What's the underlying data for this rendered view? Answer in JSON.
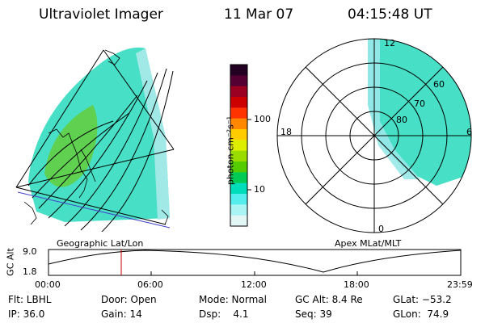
{
  "header": {
    "instrument": "Ultraviolet Imager",
    "date": "11 Mar 07",
    "time": "04:15:48 UT"
  },
  "left_map": {
    "caption": "Geographic Lat/Lon"
  },
  "right_map": {
    "caption": "Apex MLat/MLT",
    "clock_labels": {
      "top": "12",
      "left": "18",
      "right": "6",
      "bottom": "0"
    },
    "lat_labels": [
      "60",
      "70",
      "80"
    ]
  },
  "colorbar": {
    "unit": "photon cm⁻²s⁻¹",
    "ticks": [
      "100",
      "10"
    ],
    "colors": [
      "#220022",
      "#550033",
      "#990022",
      "#cc0000",
      "#ff3300",
      "#ff8800",
      "#ffcc00",
      "#ddee00",
      "#99dd00",
      "#55cc00",
      "#00cc55",
      "#00ddbb",
      "#55eeee",
      "#aaf4f4",
      "#e2f6f6"
    ]
  },
  "altitude_plot": {
    "ylabel": "GC Alt",
    "ymax_label": "9.0",
    "ymin_label": "1.8",
    "xticks": [
      "00:00",
      "06:00",
      "12:00",
      "18:00",
      "23:59"
    ],
    "marker_color": "#cc0000"
  },
  "footer": {
    "filter": "Flt: LBHL",
    "ip": "IP: 36.0",
    "door": "Door: Open",
    "gain": "Gain: 14",
    "mode": "Mode: Normal",
    "dsp": "Dsp:    4.1",
    "gc_alt": "GC Alt: 8.4 Re",
    "seq": "Seq: 39",
    "glat": "GLat: −53.2",
    "glon": "GLon:  74.9"
  }
}
